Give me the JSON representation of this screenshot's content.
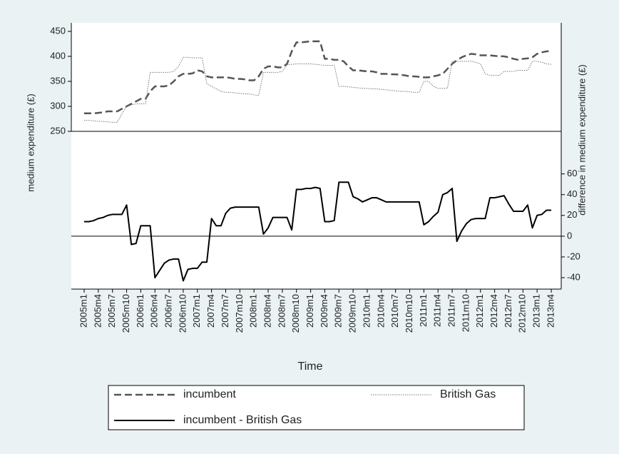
{
  "chart_data": {
    "type": "line",
    "xlabel": "Time",
    "ylabel": "medium expenditure (£)",
    "y2label": "difference in medium expenditure (£)",
    "categories": [
      "2005m1",
      null,
      null,
      "2005m4",
      null,
      null,
      "2005m7",
      null,
      null,
      "2005m10",
      null,
      null,
      "2006m1",
      null,
      null,
      "2006m4",
      null,
      null,
      "2006m7",
      null,
      null,
      "2006m10",
      null,
      null,
      "2007m1",
      null,
      null,
      "2007m4",
      null,
      null,
      "2007m7",
      null,
      null,
      "2007m10",
      null,
      null,
      "2008m1",
      null,
      null,
      "2008m4",
      null,
      null,
      "2008m7",
      null,
      null,
      "2008m10",
      null,
      null,
      "2009m1",
      null,
      null,
      "2009m4",
      null,
      null,
      "2009m7",
      null,
      null,
      "2009m10",
      null,
      null,
      "2010m1",
      null,
      null,
      "2010m4",
      null,
      null,
      "2010m7",
      null,
      null,
      "2010m10",
      null,
      null,
      "2011m1",
      null,
      null,
      "2011m4",
      null,
      null,
      "2011m7",
      null,
      null,
      "2011m10",
      null,
      null,
      "2012m1",
      null,
      null,
      "2012m4",
      null,
      null,
      "2012m7",
      null,
      null,
      "2012m10",
      null,
      null,
      "2013m1",
      null,
      null,
      "2013m4"
    ],
    "series": [
      {
        "name": "incumbent",
        "color": "#555555",
        "style": "dashed",
        "values": [
          286,
          286,
          286,
          287,
          288,
          290,
          290,
          290,
          295,
          300,
          305,
          310,
          315,
          315,
          330,
          340,
          340,
          340,
          342,
          350,
          360,
          365,
          365,
          366,
          372,
          370,
          360,
          358,
          358,
          358,
          358,
          357,
          355,
          355,
          354,
          352,
          352,
          360,
          375,
          380,
          380,
          378,
          378,
          385,
          410,
          428,
          428,
          429,
          430,
          430,
          430,
          395,
          395,
          393,
          393,
          390,
          380,
          372,
          372,
          371,
          370,
          370,
          368,
          365,
          365,
          364,
          364,
          363,
          362,
          360,
          360,
          359,
          358,
          358,
          360,
          362,
          365,
          375,
          385,
          392,
          398,
          402,
          405,
          404,
          402,
          402,
          402,
          401,
          400,
          400,
          398,
          395,
          393,
          395,
          396,
          398,
          405,
          408,
          410,
          410
        ]
      },
      {
        "name": "British Gas",
        "color": "#777777",
        "style": "dotted",
        "values": [
          272,
          272,
          271,
          270,
          270,
          269,
          268,
          268,
          285,
          300,
          303,
          305,
          305,
          305,
          368,
          368,
          368,
          368,
          368,
          370,
          380,
          398,
          398,
          397,
          397,
          397,
          345,
          340,
          335,
          330,
          328,
          328,
          327,
          326,
          325,
          325,
          323,
          322,
          368,
          368,
          368,
          368,
          370,
          383,
          384,
          385,
          385,
          385,
          385,
          384,
          383,
          382,
          382,
          382,
          340,
          340,
          339,
          338,
          337,
          336,
          336,
          335,
          335,
          334,
          333,
          332,
          331,
          330,
          330,
          329,
          328,
          328,
          350,
          350,
          340,
          336,
          336,
          336,
          390,
          390,
          390,
          390,
          390,
          388,
          385,
          365,
          362,
          362,
          362,
          370,
          370,
          370,
          372,
          372,
          372,
          390,
          390,
          388,
          385,
          384
        ]
      },
      {
        "name": "incumbent - British Gas",
        "color": "#000000",
        "style": "solid",
        "axis": "y2",
        "values": [
          14,
          14,
          15,
          17,
          18,
          20,
          21,
          21,
          21,
          30,
          -8,
          -7,
          10,
          10,
          10,
          -40,
          -33,
          -26,
          -23,
          -22,
          -22,
          -43,
          -32,
          -31,
          -31,
          -25,
          -25,
          17,
          10,
          10,
          22,
          27,
          28,
          28,
          28,
          28,
          28,
          28,
          2,
          8,
          18,
          18,
          18,
          18,
          6,
          45,
          45,
          46,
          46,
          47,
          46,
          14,
          14,
          15,
          52,
          52,
          52,
          38,
          36,
          33,
          35,
          37,
          37,
          35,
          33,
          33,
          33,
          33,
          33,
          33,
          33,
          33,
          11,
          14,
          19,
          23,
          40,
          42,
          46,
          -5,
          5,
          12,
          16,
          17,
          17,
          17,
          37,
          37,
          38,
          39,
          31,
          24,
          24,
          24,
          30,
          8,
          20,
          21,
          25,
          25
        ]
      }
    ],
    "ylim": [
      250,
      467
    ],
    "yticks": [
      250,
      300,
      350,
      400,
      450
    ],
    "y2lim": [
      -51,
      101
    ],
    "y2ticks": [
      -40,
      -20,
      0,
      20,
      40,
      60
    ]
  }
}
